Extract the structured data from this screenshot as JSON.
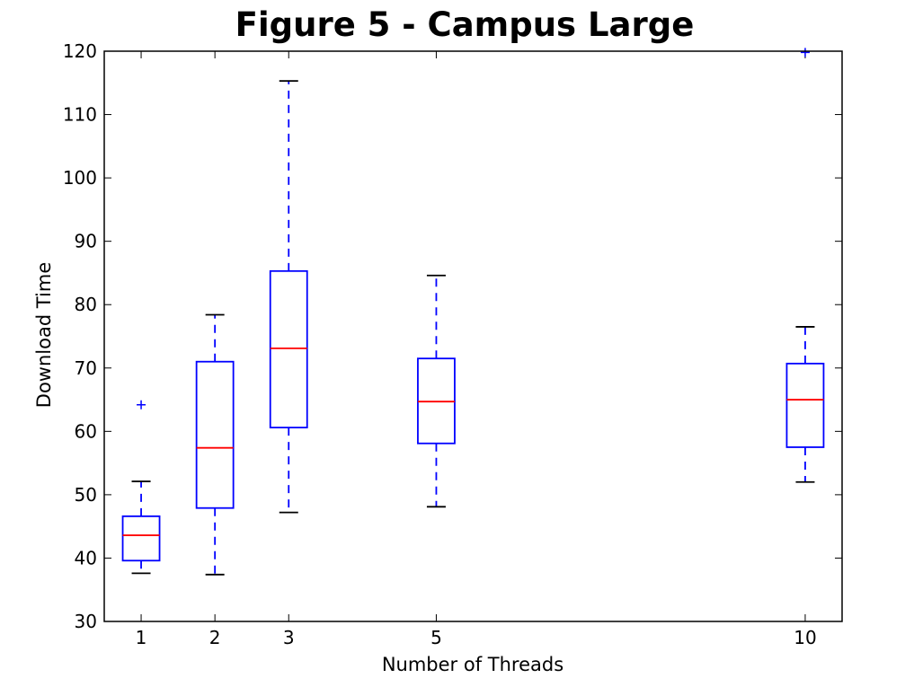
{
  "chart_data": {
    "type": "box",
    "title": "Figure 5 - Campus Large",
    "xlabel": "Number of Threads",
    "ylabel": "Download Time",
    "ylim": [
      30,
      120
    ],
    "yticks": [
      30,
      40,
      50,
      60,
      70,
      80,
      90,
      100,
      110,
      120
    ],
    "xlim": [
      0.5,
      10.5
    ],
    "xticks": [
      1,
      2,
      3,
      5,
      10
    ],
    "grid": false,
    "colors": {
      "box": "#0000ff",
      "median": "#ff0000",
      "whisker": "#0000ff",
      "cap": "#000000",
      "flier": "#0000ff"
    },
    "boxes": [
      {
        "x": 1,
        "label": "1",
        "whislo": 37.6,
        "q1": 39.6,
        "med": 43.6,
        "q3": 46.6,
        "whishi": 52.1,
        "fliers": [
          64.2
        ]
      },
      {
        "x": 2,
        "label": "2",
        "whislo": 37.4,
        "q1": 47.9,
        "med": 57.4,
        "q3": 71.0,
        "whishi": 78.4,
        "fliers": []
      },
      {
        "x": 3,
        "label": "3",
        "whislo": 47.2,
        "q1": 60.6,
        "med": 73.1,
        "q3": 85.3,
        "whishi": 115.3,
        "fliers": []
      },
      {
        "x": 5,
        "label": "5",
        "whislo": 48.1,
        "q1": 58.1,
        "med": 64.7,
        "q3": 71.5,
        "whishi": 84.6,
        "fliers": []
      },
      {
        "x": 10,
        "label": "10",
        "whislo": 52.0,
        "q1": 57.5,
        "med": 65.0,
        "q3": 70.7,
        "whishi": 76.5,
        "fliers": [
          119.8
        ]
      }
    ]
  }
}
